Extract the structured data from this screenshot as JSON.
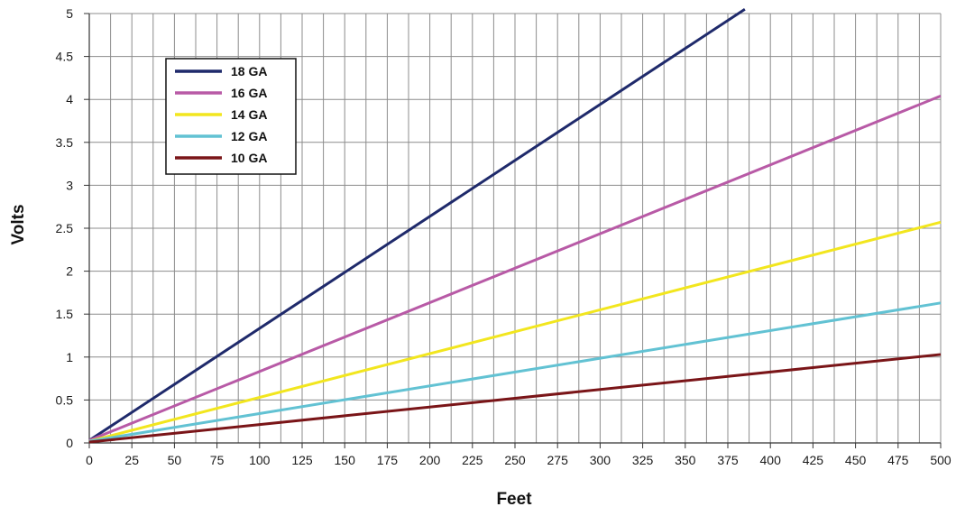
{
  "chart_data": {
    "type": "line",
    "title": "",
    "xlabel": "Feet",
    "ylabel": "Volts",
    "xlim": [
      0,
      500
    ],
    "ylim": [
      0,
      5
    ],
    "x_ticks": [
      "0",
      "25",
      "50",
      "75",
      "100",
      "125",
      "150",
      "175",
      "200",
      "225",
      "250",
      "275",
      "300",
      "325",
      "350",
      "375",
      "400",
      "425",
      "450",
      "475",
      "500"
    ],
    "y_ticks": [
      "0",
      "0.5",
      "1",
      "1.5",
      "2",
      "2.5",
      "3",
      "3.5",
      "4",
      "4.5",
      "5"
    ],
    "grid": true,
    "legend_position": "top-left",
    "series": [
      {
        "name": "18 GA",
        "color": "#1f2a6b",
        "points": [
          [
            0,
            0.03
          ],
          [
            385,
            5.05
          ]
        ]
      },
      {
        "name": "16 GA",
        "color": "#b85aa6",
        "points": [
          [
            0,
            0.03
          ],
          [
            500,
            4.04
          ]
        ]
      },
      {
        "name": "14 GA",
        "color": "#f2e61e",
        "points": [
          [
            0,
            0.02
          ],
          [
            500,
            2.57
          ]
        ]
      },
      {
        "name": "12 GA",
        "color": "#62c2d3",
        "points": [
          [
            0,
            0.02
          ],
          [
            500,
            1.63
          ]
        ]
      },
      {
        "name": "10 GA",
        "color": "#7a1518",
        "points": [
          [
            0,
            0.01
          ],
          [
            500,
            1.03
          ]
        ]
      }
    ]
  }
}
